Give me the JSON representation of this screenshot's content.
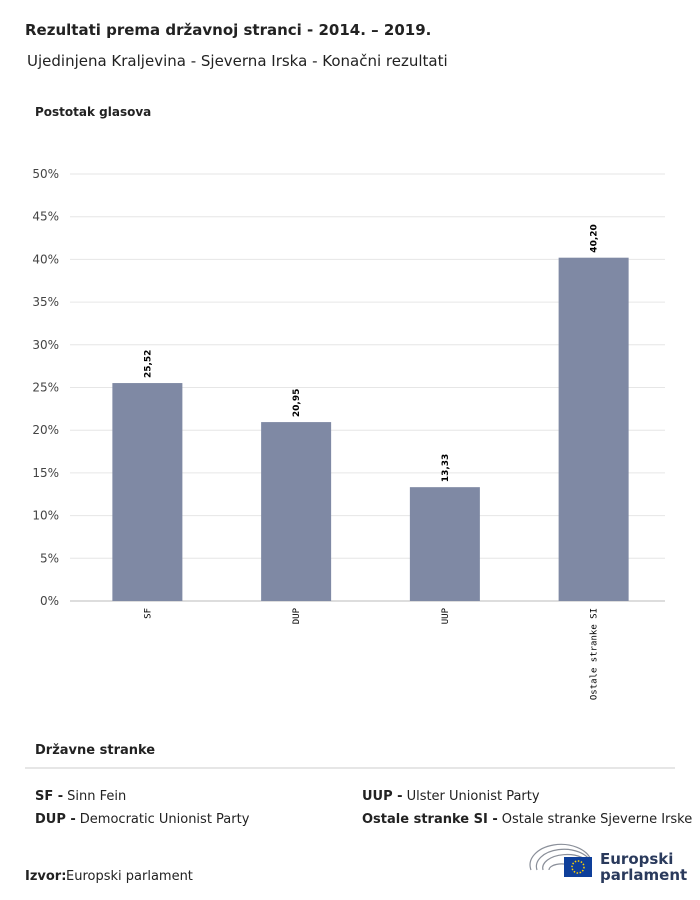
{
  "chart_data": {
    "type": "bar",
    "title": "Rezultati prema državnoj stranci - 2014. – 2019.",
    "subtitle": "Ujedinjena Kraljevina - Sjeverna Irska - Konačni rezultati",
    "y_label": "Postotak glasova",
    "categories": [
      "SF",
      "DUP",
      "UUP",
      "Ostale stranke SI"
    ],
    "values": [
      25.52,
      20.95,
      13.33,
      40.2
    ],
    "value_labels": [
      "25,52",
      "20,95",
      "13,33",
      "40,20"
    ],
    "color": "#7f89a4",
    "ylim": [
      0,
      50
    ],
    "yticks": [
      {
        "value": 0,
        "label": "0%"
      },
      {
        "value": 5,
        "label": "5%"
      },
      {
        "value": 10,
        "label": "10%"
      },
      {
        "value": 15,
        "label": "15%"
      },
      {
        "value": 20,
        "label": "20%"
      },
      {
        "value": 25,
        "label": "25%"
      },
      {
        "value": 30,
        "label": "30%"
      },
      {
        "value": 35,
        "label": "35%"
      },
      {
        "value": 40,
        "label": "40%"
      },
      {
        "value": 45,
        "label": "45%"
      },
      {
        "value": 50,
        "label": "50%"
      }
    ],
    "grid": true
  },
  "legend": {
    "title": "Državne stranke",
    "items": [
      {
        "abbr": "SF -",
        "name": "Sinn Fein"
      },
      {
        "abbr": "DUP -",
        "name": "Democratic Unionist Party"
      },
      {
        "abbr": "UUP -",
        "name": "Ulster Unionist Party"
      },
      {
        "abbr": "Ostale stranke SI -",
        "name": "Ostale stranke Sjeverne Irske"
      }
    ]
  },
  "source": {
    "label": "Izvor:",
    "text": "Europski parlament"
  },
  "logo": {
    "line1": "Europski",
    "line2": "parlament"
  }
}
